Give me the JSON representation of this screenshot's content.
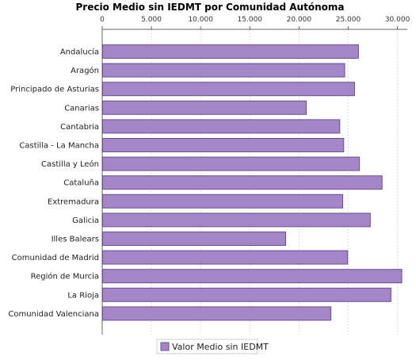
{
  "chart_data": {
    "type": "bar",
    "orientation": "horizontal",
    "title": "Precio Medio sin IEDMT por Comunidad Autónoma",
    "xlabel": "",
    "ylabel": "",
    "xlim": [
      0,
      31000
    ],
    "x_ticks": [
      0,
      5000,
      10000,
      15000,
      20000,
      25000,
      30000
    ],
    "x_tick_labels": [
      "0",
      "5.000",
      "10.000",
      "15.000",
      "20.000",
      "25.000",
      "30.000"
    ],
    "x_axis_position": "top",
    "grid": true,
    "legend_position": "bottom",
    "categories": [
      "Andalucía",
      "Aragón",
      "Principado de Asturias",
      "Canarias",
      "Cantabria",
      "Castilla - La Mancha",
      "Castilla y León",
      "Cataluña",
      "Extremadura",
      "Galicia",
      "Illes Balears",
      "Comunidad de Madrid",
      "Región de Murcia",
      "La Rioja",
      "Comunidad Valenciana"
    ],
    "series": [
      {
        "name": "Valor Medio sin IEDMT",
        "color": "#a385c8",
        "values": [
          26000,
          24600,
          25600,
          20700,
          24100,
          24500,
          26100,
          28400,
          24400,
          27200,
          18600,
          24900,
          30400,
          29300,
          23200
        ]
      }
    ]
  },
  "colors": {
    "bar_fill": "#a385c8",
    "bar_stroke": "#6a5090",
    "grid": "#dddddd",
    "axis": "#666666"
  }
}
